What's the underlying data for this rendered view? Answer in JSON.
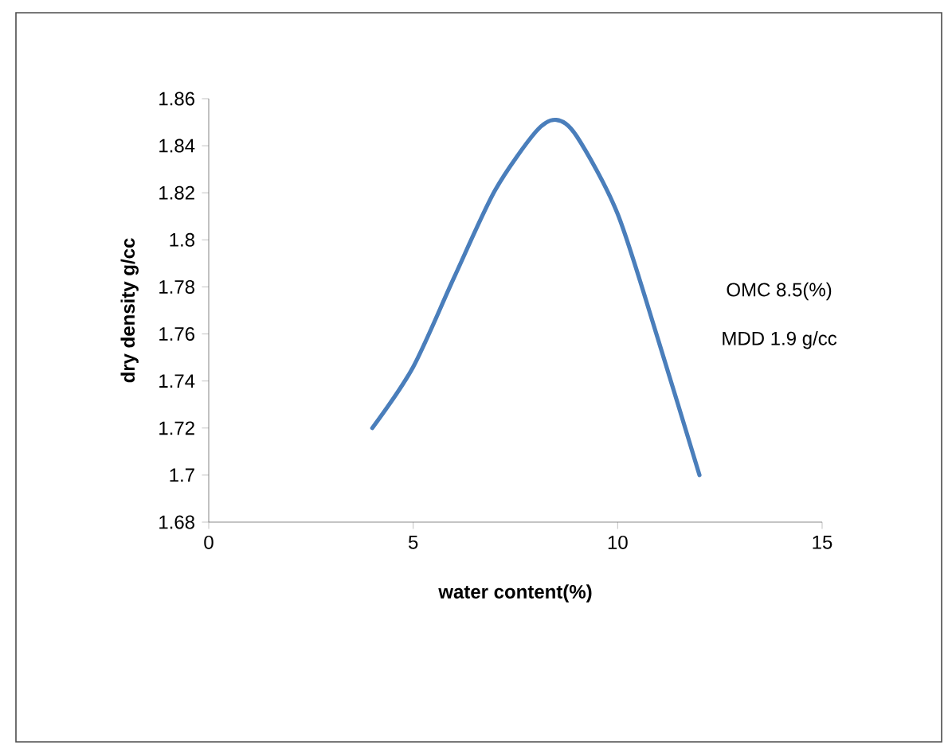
{
  "chart_data": {
    "type": "line",
    "xlabel": "water content(%)",
    "ylabel": "dry density g/cc",
    "x": [
      4,
      5,
      6,
      7,
      8,
      8.5,
      9,
      10,
      11,
      12
    ],
    "series": [
      {
        "color": "#4a7ebb",
        "values": [
          1.72,
          1.746,
          1.784,
          1.821,
          1.846,
          1.851,
          1.844,
          1.811,
          1.757,
          1.7
        ]
      }
    ],
    "xlim": [
      0,
      15
    ],
    "xticks": [
      0,
      5,
      10,
      15
    ],
    "ylim": [
      1.68,
      1.86
    ],
    "yticks": [
      1.68,
      1.7,
      1.72,
      1.74,
      1.76,
      1.78,
      1.8,
      1.82,
      1.84,
      1.86
    ],
    "grid": false,
    "marker": "none",
    "line_style": "solid",
    "annotations": [
      "OMC 8.5(%)",
      "MDD 1.9 g/cc"
    ]
  }
}
